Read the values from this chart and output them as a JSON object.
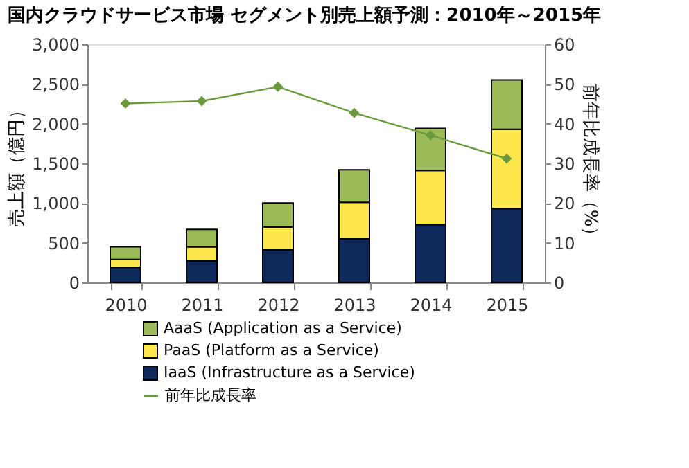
{
  "chart_data": {
    "type": "bar",
    "title": "国内クラウドサービス市場 セグメント別売上額予測：2010年～2015年",
    "categories": [
      "2010",
      "2011",
      "2012",
      "2013",
      "2014",
      "2015"
    ],
    "stacked": true,
    "series": [
      {
        "name": "IaaS (Infrastructure  as a Service)",
        "color": "#0e2a5c",
        "values": [
          190,
          270,
          410,
          550,
          730,
          930
        ]
      },
      {
        "name": "PaaS (Platform as a Service)",
        "color": "#fde74c",
        "values": [
          100,
          180,
          290,
          460,
          680,
          1000
        ]
      },
      {
        "name": "AaaS (Application as a Service)",
        "color": "#9bbb59",
        "values": [
          160,
          220,
          300,
          410,
          530,
          620
        ]
      },
      {
        "name": "前年比成長率",
        "type": "line",
        "axis": "y2",
        "marker": "diamond",
        "color": "#6a9a3c",
        "values": [
          45.1,
          45.7,
          49.3,
          42.7,
          37.1,
          31.2
        ]
      }
    ],
    "ylabel": "売上額（億円）",
    "y2label": "前年比成長率（%）",
    "ylim": [
      0,
      3000
    ],
    "yticks": [
      0,
      500,
      {
        "value": 1000,
        "label": "1,000"
      },
      {
        "value": 1500,
        "label": "1,500"
      },
      {
        "value": 2000,
        "label": "2,000"
      },
      {
        "value": 2500,
        "label": "2,500"
      },
      {
        "value": 3000,
        "label": "3,000"
      }
    ],
    "y2lim": [
      0,
      60
    ],
    "y2ticks": [
      0,
      10,
      20,
      30,
      40,
      50,
      60
    ],
    "grid": false,
    "legend": "bottom"
  }
}
